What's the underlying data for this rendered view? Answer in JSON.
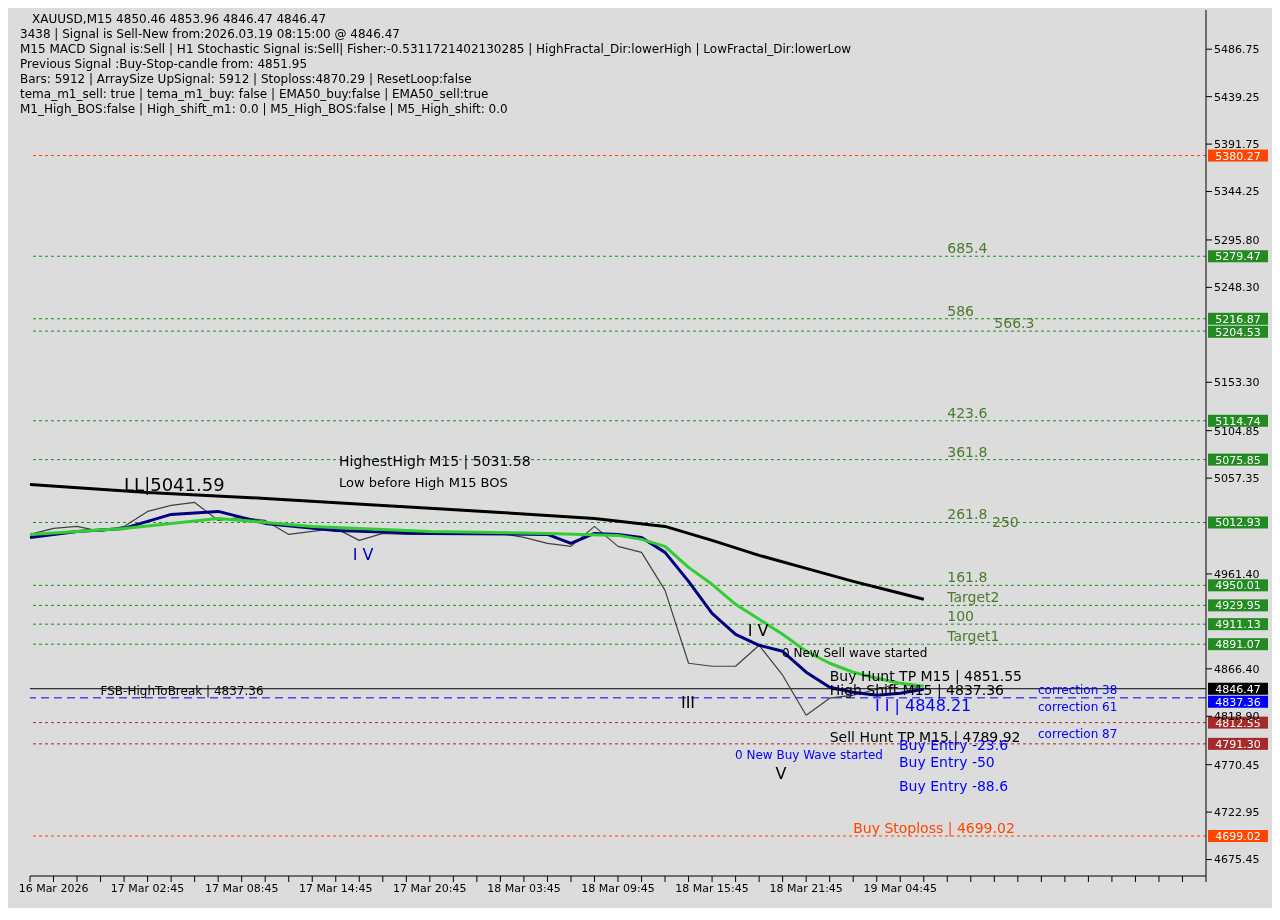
{
  "chart_data": {
    "type": "line",
    "title": "XAUUSD,M15  4850.46 4853.96 4846.47 4846.47",
    "annotations": [
      "3438 | Signal is Sell-New from:2026.03.19 08:15:00 @ 4846.47",
      "M15 MACD Signal is:Sell | H1 Stochastic Signal is:Sell| Fisher:-0.5311721402130285 | HighFractal_Dir:lowerHigh | LowFractal_Dir:lowerLow",
      "Previous Signal :Buy-Stop-candle from: 4851.95",
      "Bars: 5912 | ArraySize UpSignal: 5912 | Stoploss:4870.29 | ResetLoop:false",
      "tema_m1_sell: true | tema_m1_buy: false | EMA50_buy:false | EMA50_sell:true",
      "M1_High_BOS:false | High_shift_m1: 0.0 | M5_High_BOS:false | M5_High_shift: 0.0",
      {
        "text": "LL|5041.59",
        "y": 5041.59
      },
      "HighestHigh    M15 | 5031.58",
      "Low before High    M15 BOS",
      "I V",
      {
        "text": "FSB-HighToBreak | 4837.36",
        "y": 4837.36
      },
      "III",
      "I V",
      "V",
      "0 New Sell wave started",
      "0 New Buy Wave started",
      {
        "text": "Buy Hunt TP M15 | 4851.55",
        "y": 4851.55
      },
      {
        "text": "High Shift M15 | 4837.36",
        "y": 4837.36
      },
      "I I | 4848.21",
      {
        "text": "Sell Hunt TP M15 | 4789.92",
        "y": 4789.92
      },
      {
        "text": "685.4",
        "y": 5279.47
      },
      {
        "text": "586",
        "y": 5216.87
      },
      {
        "text": "566.3",
        "y": 5204.53
      },
      {
        "text": "423.6",
        "y": 5114.74
      },
      {
        "text": "361.8",
        "y": 5075.85
      },
      {
        "text": "261.8",
        "y": 5012.93
      },
      "250",
      {
        "text": "161.8",
        "y": 4950.01
      },
      {
        "text": "Target2",
        "y": 4929.95
      },
      {
        "text": "100",
        "y": 4911.13
      },
      {
        "text": "Target1",
        "y": 4891.07
      },
      "correction 38",
      "correction 61",
      "correction 87",
      "Buy Entry -23.6",
      "Buy Entry -50",
      "Buy Entry -88.6",
      {
        "text": "Buy Stoploss | 4699.02",
        "y": 4699.02
      }
    ],
    "categories": [
      null,
      "16 Mar 2026",
      null,
      null,
      null,
      "17 Mar 02:45",
      null,
      null,
      null,
      "17 Mar 08:45",
      null,
      null,
      null,
      "17 Mar 14:45",
      null,
      null,
      null,
      "17 Mar 20:45",
      null,
      null,
      null,
      "18 Mar 03:45",
      null,
      null,
      null,
      "18 Mar 09:45",
      null,
      null,
      null,
      "18 Mar 15:45",
      null,
      null,
      null,
      "18 Mar 21:45",
      null,
      null,
      null,
      "19 Mar 04:45",
      null,
      null,
      null,
      null,
      null,
      null,
      null,
      null,
      null,
      null,
      null,
      null,
      null
    ],
    "series": [
      {
        "color": "#404040",
        "values": [
          5001,
          5007,
          5009,
          5004,
          5009,
          5024,
          5030,
          5033,
          5015,
          5018,
          5015,
          5001,
          5004,
          5007,
          4995,
          5002,
          5001,
          5001,
          5002,
          5001,
          5002,
          4998,
          4992,
          4989,
          5009,
          4989,
          4983,
          4945,
          4872,
          4869,
          4869,
          4890,
          4860,
          4820,
          4837,
          4840,
          4846,
          4852,
          4846,
          null,
          null,
          null,
          null,
          null,
          null,
          null,
          null,
          null,
          null,
          null,
          null
        ]
      },
      {
        "color": "#000000",
        "values": [
          5051,
          null,
          null,
          null,
          null,
          5043,
          null,
          null,
          null,
          null,
          5037,
          null,
          null,
          null,
          null,
          5030,
          null,
          null,
          null,
          null,
          5023,
          null,
          null,
          null,
          5017,
          null,
          null,
          5009,
          null,
          4995,
          null,
          4980,
          null,
          4967,
          null,
          4954,
          null,
          4942,
          4936,
          null,
          null,
          null,
          null,
          null,
          null,
          null,
          null,
          null,
          null,
          null,
          null
        ]
      },
      {
        "color": "#000080",
        "values": [
          4998,
          null,
          5004,
          null,
          5007,
          null,
          5021,
          null,
          5024,
          null,
          5012,
          null,
          null,
          5005,
          null,
          null,
          null,
          5002,
          null,
          null,
          null,
          null,
          5001,
          4992,
          5002,
          5001,
          4998,
          4983,
          4954,
          4922,
          4901,
          4890,
          4884,
          4863,
          4848,
          4843,
          4840,
          4842,
          4846,
          null,
          null,
          null,
          null,
          null,
          null,
          null,
          null,
          null,
          null,
          null,
          null
        ]
      },
      {
        "color": "#32cd32",
        "values": [
          5001,
          null,
          null,
          null,
          5007,
          null,
          5012,
          null,
          5017,
          null,
          null,
          null,
          5009,
          null,
          null,
          null,
          null,
          5004,
          null,
          null,
          null,
          null,
          5002,
          null,
          null,
          5000,
          4996,
          4989,
          4968,
          4951,
          4931,
          4916,
          4901,
          4884,
          4872,
          4863,
          4857,
          4852,
          4849,
          null,
          null,
          null,
          null,
          null,
          null,
          null,
          null,
          null,
          null,
          null,
          null
        ]
      }
    ],
    "ylim": [
      4659,
      5526
    ],
    "yticks": [
      5486.75,
      5439.25,
      5391.75,
      5344.25,
      {
        "value": 5295.8,
        "label": "5295.80"
      },
      {
        "value": 5248.3,
        "label": "5248.30"
      },
      {
        "value": 5153.3,
        "label": "5153.30"
      },
      5104.85,
      5057.35,
      {
        "value": 4961.4,
        "label": "4961.40"
      },
      {
        "value": 4866.4,
        "label": "4866.40"
      },
      {
        "value": 4818.9,
        "label": "4818.90"
      },
      4770.45,
      4722.95,
      4675.45
    ],
    "ref_lines": [
      {
        "axis": "y",
        "value": 5380.27,
        "label": "5380.27",
        "color": "#ff4500",
        "line_style": "dotted"
      },
      {
        "axis": "y",
        "value": 5279.47,
        "label": "5279.47",
        "color": "#228b22",
        "line_style": "dotted"
      },
      {
        "axis": "y",
        "value": 5216.87,
        "label": "5216.87",
        "color": "#228b22",
        "line_style": "dotted"
      },
      {
        "axis": "y",
        "value": 5204.53,
        "label": "5204.53",
        "color": "#228b22",
        "line_style": "dotted"
      },
      {
        "axis": "y",
        "value": 5114.74,
        "label": "5114.74",
        "color": "#228b22",
        "line_style": "dotted"
      },
      {
        "axis": "y",
        "value": 5075.85,
        "label": "5075.85",
        "color": "#228b22",
        "line_style": "dotted"
      },
      {
        "axis": "y",
        "value": 5012.93,
        "label": "5012.93",
        "color": "#228b22",
        "line_style": "dotted"
      },
      {
        "axis": "y",
        "value": 4950.01,
        "label": "4950.01",
        "color": "#228b22",
        "line_style": "dotted"
      },
      {
        "axis": "y",
        "value": 4929.95,
        "label": "4929.95",
        "color": "#228b22",
        "line_style": "dotted"
      },
      {
        "axis": "y",
        "value": 4911.13,
        "label": "4911.13",
        "color": "#228b22",
        "line_style": "dotted"
      },
      {
        "axis": "y",
        "value": 4891.07,
        "label": "4891.07",
        "color": "#228b22",
        "line_style": "dotted"
      },
      {
        "axis": "y",
        "value": 4846.47,
        "label": "4846.47",
        "color": "#000000",
        "line_style": "solid"
      },
      {
        "axis": "y",
        "value": 4837.36,
        "label": "4837.36",
        "color": "#0000ff",
        "line_style": "dashed"
      },
      {
        "axis": "y",
        "value": 4812.55,
        "label": "4812.55",
        "color": "#a52a2a",
        "line_style": "dotted"
      },
      {
        "axis": "y",
        "value": 4791.3,
        "label": "4791.30",
        "color": "#a52a2a",
        "line_style": "dotted"
      },
      {
        "axis": "y",
        "value": 4699.02,
        "label": "4699.02",
        "color": "#ff4500",
        "line_style": "dotted"
      }
    ],
    "marker": "none",
    "line_style": "solid"
  }
}
